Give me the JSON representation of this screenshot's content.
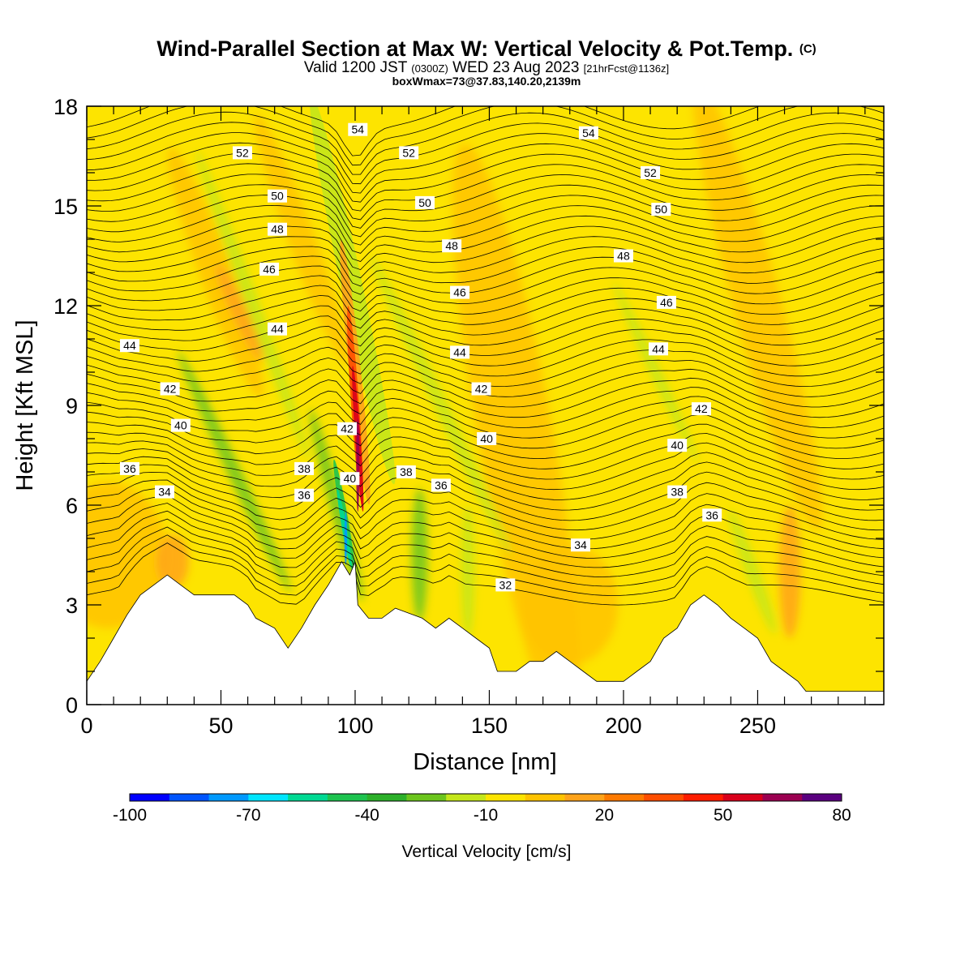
{
  "header": {
    "title": "Wind-Parallel Section at Max W: Vertical Velocity & Pot.Temp.",
    "copyright": "(C)",
    "valid_prefix": "Valid 1200 JST",
    "valid_utc": "(0300Z)",
    "valid_date": "WED 23 Aug 2023",
    "forecast": "[21hrFcst@1136z]",
    "box_info": "boxWmax=73@37.83,140.20,2139m"
  },
  "chart_data": {
    "type": "heatmap",
    "xlabel": "Distance [nm]",
    "ylabel": "Height [Kft MSL]",
    "xlim": [
      0,
      297
    ],
    "ylim": [
      0,
      18
    ],
    "x_ticks": [
      "0",
      "50",
      "100",
      "150",
      "200",
      "250"
    ],
    "y_ticks": [
      "0",
      "3",
      "6",
      "9",
      "12",
      "15",
      "18"
    ],
    "colorbar": {
      "label": "Vertical Velocity [cm/s]",
      "tick_labels": [
        "-100",
        "-70",
        "-40",
        "-10",
        "20",
        "50",
        "80"
      ],
      "colors": [
        "#0000ff",
        "#0055ff",
        "#0099ff",
        "#00e5ff",
        "#00d993",
        "#1ec34f",
        "#2db02a",
        "#6cc51d",
        "#c4e61a",
        "#fde400",
        "#ffc300",
        "#ffa31a",
        "#ff7a00",
        "#ff4e00",
        "#ff1d00",
        "#d9001b",
        "#9b0051",
        "#5a007f"
      ]
    },
    "terrain_top_kft": [
      [
        0,
        0.7
      ],
      [
        5,
        1.3
      ],
      [
        10,
        2.0
      ],
      [
        15,
        2.7
      ],
      [
        20,
        3.3
      ],
      [
        25,
        3.6
      ],
      [
        30,
        3.9
      ],
      [
        35,
        3.6
      ],
      [
        40,
        3.3
      ],
      [
        45,
        3.3
      ],
      [
        55,
        3.3
      ],
      [
        60,
        3.0
      ],
      [
        63,
        2.6
      ],
      [
        70,
        2.3
      ],
      [
        75,
        1.7
      ],
      [
        80,
        2.3
      ],
      [
        85,
        3.0
      ],
      [
        90,
        3.6
      ],
      [
        95,
        4.3
      ],
      [
        98,
        3.9
      ],
      [
        100,
        4.3
      ],
      [
        101,
        3.0
      ],
      [
        105,
        2.6
      ],
      [
        110,
        2.6
      ],
      [
        115,
        2.9
      ],
      [
        125,
        2.6
      ],
      [
        130,
        2.3
      ],
      [
        135,
        2.6
      ],
      [
        140,
        2.3
      ],
      [
        145,
        2.0
      ],
      [
        150,
        1.7
      ],
      [
        153,
        1.0
      ],
      [
        160,
        1.0
      ],
      [
        165,
        1.3
      ],
      [
        170,
        1.3
      ],
      [
        175,
        1.6
      ],
      [
        180,
        1.3
      ],
      [
        185,
        1.0
      ],
      [
        190,
        0.7
      ],
      [
        200,
        0.7
      ],
      [
        205,
        1.0
      ],
      [
        210,
        1.3
      ],
      [
        215,
        2.0
      ],
      [
        220,
        2.3
      ],
      [
        225,
        3.0
      ],
      [
        230,
        3.3
      ],
      [
        235,
        3.0
      ],
      [
        240,
        2.6
      ],
      [
        245,
        2.3
      ],
      [
        250,
        2.0
      ],
      [
        255,
        1.3
      ],
      [
        260,
        1.0
      ],
      [
        265,
        0.7
      ],
      [
        268,
        0.4
      ],
      [
        297,
        0.4
      ]
    ],
    "theta_contour_labels": [
      {
        "label": "54",
        "x": 101,
        "y": 17.3
      },
      {
        "label": "54",
        "x": 187,
        "y": 17.2
      },
      {
        "label": "52",
        "x": 58,
        "y": 16.6
      },
      {
        "label": "52",
        "x": 120,
        "y": 16.6
      },
      {
        "label": "52",
        "x": 210,
        "y": 16.0
      },
      {
        "label": "50",
        "x": 71,
        "y": 15.3
      },
      {
        "label": "50",
        "x": 126,
        "y": 15.1
      },
      {
        "label": "50",
        "x": 214,
        "y": 14.9
      },
      {
        "label": "48",
        "x": 71,
        "y": 14.3
      },
      {
        "label": "48",
        "x": 136,
        "y": 13.8
      },
      {
        "label": "48",
        "x": 200,
        "y": 13.5
      },
      {
        "label": "46",
        "x": 68,
        "y": 13.1
      },
      {
        "label": "46",
        "x": 139,
        "y": 12.4
      },
      {
        "label": "46",
        "x": 216,
        "y": 12.1
      },
      {
        "label": "44",
        "x": 16,
        "y": 10.8
      },
      {
        "label": "44",
        "x": 71,
        "y": 11.3
      },
      {
        "label": "44",
        "x": 139,
        "y": 10.6
      },
      {
        "label": "44",
        "x": 213,
        "y": 10.7
      },
      {
        "label": "42",
        "x": 31,
        "y": 9.5
      },
      {
        "label": "42",
        "x": 97,
        "y": 8.3
      },
      {
        "label": "42",
        "x": 147,
        "y": 9.5
      },
      {
        "label": "42",
        "x": 229,
        "y": 8.9
      },
      {
        "label": "40",
        "x": 35,
        "y": 8.4
      },
      {
        "label": "40",
        "x": 98,
        "y": 6.8
      },
      {
        "label": "40",
        "x": 149,
        "y": 8.0
      },
      {
        "label": "40",
        "x": 220,
        "y": 7.8
      },
      {
        "label": "38",
        "x": 81,
        "y": 7.1
      },
      {
        "label": "38",
        "x": 119,
        "y": 7.0
      },
      {
        "label": "38",
        "x": 220,
        "y": 6.4
      },
      {
        "label": "36",
        "x": 16,
        "y": 7.1
      },
      {
        "label": "36",
        "x": 81,
        "y": 6.3
      },
      {
        "label": "36",
        "x": 132,
        "y": 6.6
      },
      {
        "label": "36",
        "x": 233,
        "y": 5.7
      },
      {
        "label": "34",
        "x": 29,
        "y": 6.4
      },
      {
        "label": "34",
        "x": 184,
        "y": 4.8
      },
      {
        "label": "32",
        "x": 156,
        "y": 3.6
      }
    ]
  }
}
